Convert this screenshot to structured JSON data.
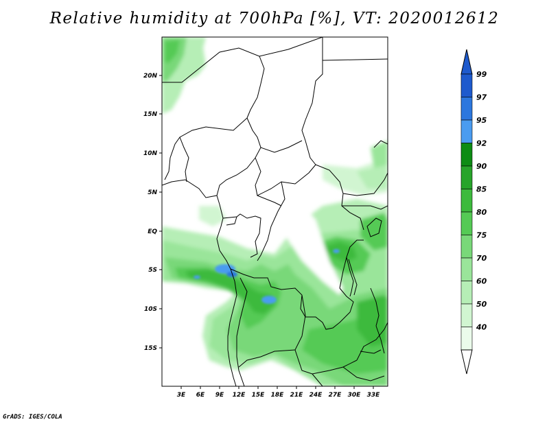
{
  "title": "Relative humidity at 700hPa [%], VT: 2020012612",
  "credit": "GrADS: IGES/COLA",
  "map": {
    "lat_labels": [
      "20N",
      "15N",
      "10N",
      "5N",
      "EQ",
      "5S",
      "10S",
      "15S"
    ],
    "lon_labels": [
      "3E",
      "6E",
      "9E",
      "12E",
      "15E",
      "18E",
      "21E",
      "24E",
      "27E",
      "30E",
      "33E"
    ]
  },
  "colorbar": {
    "levels": [
      "99",
      "97",
      "95",
      "92",
      "90",
      "85",
      "80",
      "75",
      "70",
      "60",
      "50",
      "40"
    ],
    "colors": [
      "#1e5acd",
      "#2c77de",
      "#4a9cf0",
      "#0d8c14",
      "#27a42a",
      "#3dba3d",
      "#55ca55",
      "#79d879",
      "#9ae59a",
      "#b6eeb6",
      "#d1f5d1",
      "#ebfbeb"
    ],
    "top_arrow_color": "#1e5acd",
    "bottom_arrow_color": "#ffffff"
  }
}
